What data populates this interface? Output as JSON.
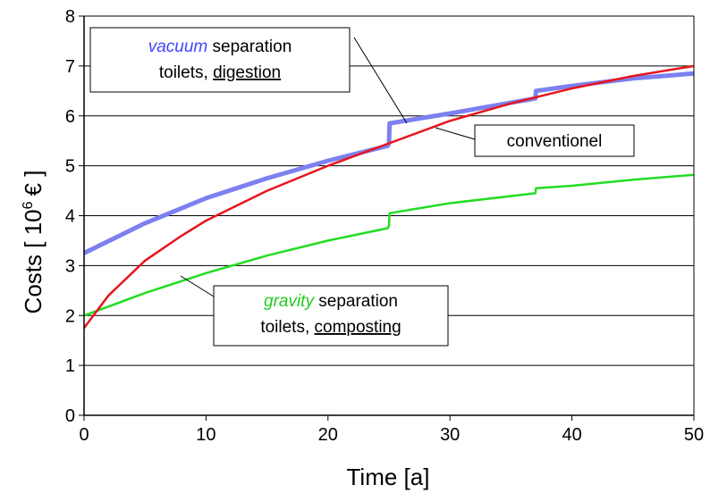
{
  "chart_data": {
    "type": "line",
    "xlabel": "Time [a]",
    "ylabel": "Costs [ 10",
    "ylabel_sup": "6",
    "ylabel_tail": "€ ]",
    "xlim": [
      0,
      50
    ],
    "ylim": [
      0,
      8
    ],
    "xticks": [
      "0",
      "10",
      "20",
      "30",
      "40",
      "50"
    ],
    "yticks": [
      "0",
      "1",
      "2",
      "3",
      "4",
      "5",
      "6",
      "7",
      "8"
    ],
    "grid": "horizontal",
    "series": [
      {
        "key": "conventional",
        "color": "#e8141c",
        "x": [
          0,
          2,
          5,
          8,
          10,
          15,
          20,
          25,
          30,
          35,
          40,
          45,
          50
        ],
        "y": [
          1.75,
          2.4,
          3.1,
          3.6,
          3.9,
          4.5,
          5.0,
          5.45,
          5.9,
          6.25,
          6.55,
          6.8,
          7.0
        ]
      },
      {
        "key": "vacuum",
        "color": "#7d80f0",
        "x": [
          0,
          5,
          10,
          15,
          20,
          24.9,
          25,
          25.05,
          30,
          37,
          37.05,
          40,
          45,
          50
        ],
        "y": [
          3.25,
          3.85,
          4.35,
          4.75,
          5.1,
          5.4,
          5.45,
          5.85,
          6.05,
          6.35,
          6.5,
          6.6,
          6.75,
          6.85
        ]
      },
      {
        "key": "gravity",
        "color": "#22dd22",
        "x": [
          0,
          5,
          10,
          15,
          20,
          24.9,
          25,
          25.05,
          30,
          37,
          37.05,
          40,
          45,
          50
        ],
        "y": [
          2.0,
          2.45,
          2.85,
          3.2,
          3.5,
          3.75,
          3.8,
          4.05,
          4.25,
          4.45,
          4.55,
          4.6,
          4.72,
          4.82
        ]
      }
    ],
    "annotations": {
      "vacuum": {
        "line1_colored": "vacuum",
        "line1_rest": "separation",
        "line2_plain": "toilets,",
        "line2_underlined": "digestion"
      },
      "conventional": {
        "text": "conventionel"
      },
      "gravity": {
        "line1_colored": "gravity",
        "line1_rest": "separation",
        "line2_plain": "toilets,",
        "line2_underlined": "composting"
      }
    }
  }
}
